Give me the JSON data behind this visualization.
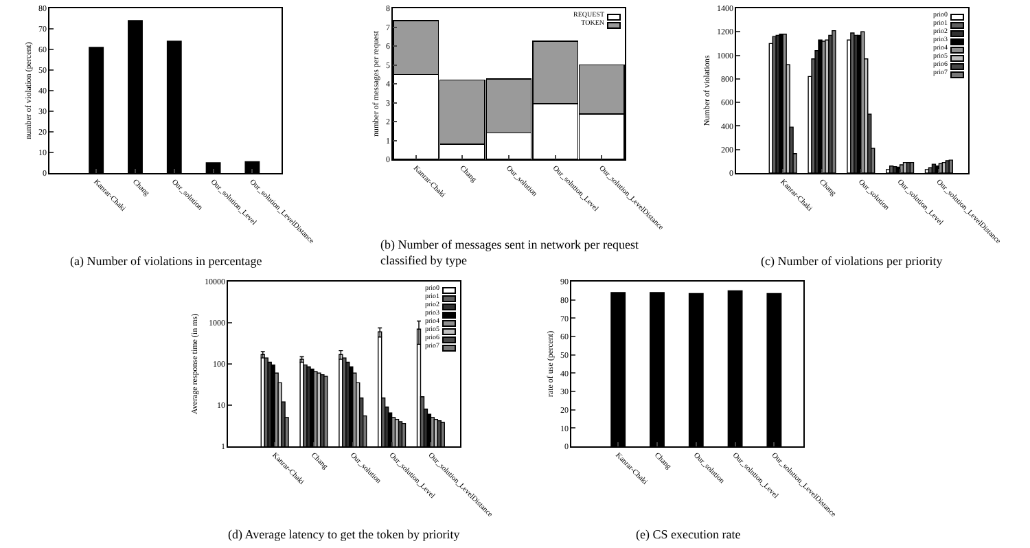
{
  "chart_data": [
    {
      "type": "bar",
      "title": "(a) Number of violations in percentage",
      "ylabel": "number of violation (percent)",
      "categories": [
        "Kanrar-Chaki",
        "Chang",
        "Our_solution",
        "Our_solution_Level",
        "Our_solution_LevelDistance"
      ],
      "values": [
        61,
        74,
        64,
        5,
        5.5
      ],
      "color": "#000000",
      "ylim": [
        0,
        80
      ],
      "yticks": [
        0,
        10,
        20,
        30,
        40,
        50,
        60,
        70,
        80
      ],
      "grid": false,
      "legend": false
    },
    {
      "type": "bar",
      "stacked": true,
      "title": "(b) Number of messages sent in network per request classified by type",
      "ylabel": "number of messages per request",
      "categories": [
        "Kanrar-Chaki",
        "Chang",
        "Our_solution",
        "Our_solution_Level",
        "Our_solution_LevelDistance"
      ],
      "series": [
        {
          "name": "REQUEST",
          "color": "#ffffff",
          "values": [
            4.5,
            0.8,
            1.4,
            2.95,
            2.4
          ]
        },
        {
          "name": "TOKEN",
          "color": "#9a9a9a",
          "values": [
            2.85,
            3.4,
            2.85,
            3.3,
            2.6
          ]
        }
      ],
      "ylim": [
        0,
        8
      ],
      "yticks": [
        0,
        1,
        2,
        3,
        4,
        5,
        6,
        7,
        8
      ],
      "grid": false,
      "legend": "top right"
    },
    {
      "type": "bar",
      "title": "(c) Number of violations per priority",
      "ylabel": "Number of violations",
      "categories": [
        "Kanrar-Chaki",
        "Chang",
        "Our_solution",
        "Our_solution_Level",
        "Our_solution_LevelDistance"
      ],
      "series": [
        {
          "name": "prio0",
          "color": "#ffffff",
          "values": [
            1100,
            820,
            1130,
            30,
            30
          ]
        },
        {
          "name": "prio1",
          "color": "#606060",
          "values": [
            1160,
            970,
            1190,
            60,
            45
          ]
        },
        {
          "name": "prio2",
          "color": "#303030",
          "values": [
            1170,
            1040,
            1170,
            55,
            75
          ]
        },
        {
          "name": "prio3",
          "color": "#000000",
          "values": [
            1180,
            1130,
            1170,
            50,
            60
          ]
        },
        {
          "name": "prio4",
          "color": "#909090",
          "values": [
            1180,
            1120,
            1200,
            70,
            80
          ]
        },
        {
          "name": "prio5",
          "color": "#c0c0c0",
          "values": [
            920,
            1130,
            970,
            90,
            90
          ]
        },
        {
          "name": "prio6",
          "color": "#484848",
          "values": [
            390,
            1170,
            500,
            90,
            105
          ]
        },
        {
          "name": "prio7",
          "color": "#787878",
          "values": [
            165,
            1210,
            210,
            90,
            110
          ]
        }
      ],
      "ylim": [
        0,
        1400
      ],
      "yticks": [
        0,
        200,
        400,
        600,
        800,
        1000,
        1200,
        1400
      ],
      "grid": false,
      "legend": "top right"
    },
    {
      "type": "bar",
      "log": true,
      "title": "(d) Average latency to get the token by priority",
      "ylabel": "Average response time (in ms)",
      "categories": [
        "Kanrar-Chaki",
        "Chang",
        "Our_solution",
        "Our_solution_Level",
        "Our_solution_LevelDistance"
      ],
      "series": [
        {
          "name": "prio0",
          "color": "#ffffff",
          "values": [
            170,
            130,
            170,
            600,
            700
          ],
          "errors": [
            30,
            20,
            40,
            150,
            [
              300,
              1100
            ]
          ]
        },
        {
          "name": "prio1",
          "color": "#606060",
          "values": [
            140,
            95,
            140,
            15,
            16
          ]
        },
        {
          "name": "prio2",
          "color": "#303030",
          "values": [
            110,
            85,
            110,
            9,
            8
          ]
        },
        {
          "name": "prio3",
          "color": "#000000",
          "values": [
            95,
            75,
            85,
            6.5,
            6
          ]
        },
        {
          "name": "prio4",
          "color": "#909090",
          "values": [
            60,
            65,
            60,
            5,
            5
          ]
        },
        {
          "name": "prio5",
          "color": "#c0c0c0",
          "values": [
            35,
            60,
            35,
            4.5,
            4.5
          ]
        },
        {
          "name": "prio6",
          "color": "#484848",
          "values": [
            12,
            55,
            15,
            4,
            4.2
          ]
        },
        {
          "name": "prio7",
          "color": "#787878",
          "values": [
            5,
            50,
            5.5,
            3.6,
            3.8
          ]
        }
      ],
      "ylim": [
        1,
        10000
      ],
      "yticks": [
        1,
        10,
        100,
        1000,
        10000
      ],
      "grid": false,
      "legend": "top right"
    },
    {
      "type": "bar",
      "title": "(e) CS execution rate",
      "ylabel": "rate of use (percent)",
      "categories": [
        "Kanrar-Chaki",
        "Chang",
        "Our_solution",
        "Our_solution_Level",
        "Our_solution_LevelDistance"
      ],
      "values": [
        84,
        84,
        83.5,
        85,
        83.5
      ],
      "color": "#000000",
      "ylim": [
        0,
        90
      ],
      "yticks": [
        0,
        10,
        20,
        30,
        40,
        50,
        60,
        70,
        80,
        90
      ],
      "grid": false,
      "legend": false
    }
  ]
}
